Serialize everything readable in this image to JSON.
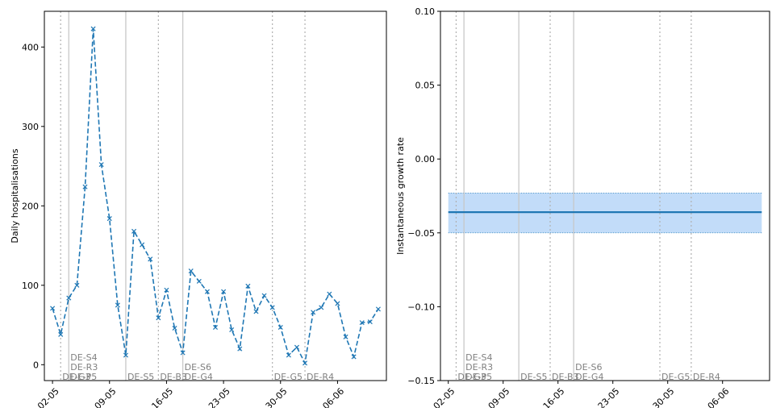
{
  "colors": {
    "series": "#1f77b4",
    "band_fill": "#c2dcf9",
    "band_edge": "#1f77b4",
    "annotation_text": "#808080",
    "line_solid": "#c8c8c8",
    "line_dotted": "#b0b0b0"
  },
  "x_axis": {
    "type": "date",
    "range": [
      "2021-05-01",
      "2021-06-12"
    ],
    "ticks": [
      {
        "date": "2021-05-02",
        "label": "02-05"
      },
      {
        "date": "2021-05-09",
        "label": "09-05"
      },
      {
        "date": "2021-05-16",
        "label": "16-05"
      },
      {
        "date": "2021-05-23",
        "label": "23-05"
      },
      {
        "date": "2021-05-30",
        "label": "30-05"
      },
      {
        "date": "2021-06-06",
        "label": "06-06"
      }
    ],
    "tick_rotation_deg": 45
  },
  "annotations": [
    {
      "date": "2021-05-03",
      "style": "dotted",
      "labels": [
        "DE-G3"
      ]
    },
    {
      "date": "2021-05-04",
      "style": "solid",
      "labels": [
        "DE-S4",
        "DE-R3",
        "DE-P5"
      ]
    },
    {
      "date": "2021-05-11",
      "style": "solid",
      "labels": [
        "DE-S5"
      ]
    },
    {
      "date": "2021-05-15",
      "style": "dotted",
      "labels": [
        "DE-B3"
      ]
    },
    {
      "date": "2021-05-18",
      "style": "solid",
      "labels": [
        "DE-S6",
        "DE-G4"
      ]
    },
    {
      "date": "2021-05-29",
      "style": "dotted",
      "labels": [
        "DE-G5"
      ]
    },
    {
      "date": "2021-06-02",
      "style": "dotted",
      "labels": [
        "DE-R4"
      ]
    }
  ],
  "chart_data": [
    {
      "type": "line",
      "marker": "x",
      "linestyle": "dashed",
      "ylabel": "Daily hospitalisations",
      "ylim": [
        -20,
        445
      ],
      "yticks": [
        0,
        100,
        200,
        300,
        400
      ],
      "grid": false,
      "x": [
        "2021-05-02",
        "2021-05-03",
        "2021-05-04",
        "2021-05-05",
        "2021-05-06",
        "2021-05-07",
        "2021-05-08",
        "2021-05-09",
        "2021-05-10",
        "2021-05-11",
        "2021-05-12",
        "2021-05-13",
        "2021-05-14",
        "2021-05-15",
        "2021-05-16",
        "2021-05-17",
        "2021-05-18",
        "2021-05-19",
        "2021-05-20",
        "2021-05-21",
        "2021-05-22",
        "2021-05-23",
        "2021-05-24",
        "2021-05-25",
        "2021-05-26",
        "2021-05-27",
        "2021-05-28",
        "2021-05-29",
        "2021-05-30",
        "2021-05-31",
        "2021-06-01",
        "2021-06-02",
        "2021-06-03",
        "2021-06-04",
        "2021-06-05",
        "2021-06-06",
        "2021-06-07",
        "2021-06-08",
        "2021-06-09",
        "2021-06-10",
        "2021-06-11"
      ],
      "values": [
        71,
        38,
        84,
        100,
        224,
        423,
        252,
        184,
        75,
        12,
        168,
        151,
        133,
        59,
        94,
        46,
        15,
        118,
        105,
        92,
        47,
        92,
        44,
        20,
        99,
        67,
        87,
        72,
        47,
        12,
        22,
        2,
        66,
        72,
        89,
        77,
        35,
        10,
        53,
        54,
        70
      ]
    },
    {
      "type": "area",
      "ylabel": "Instantaneous growth rate",
      "ylim": [
        -0.15,
        0.1
      ],
      "yticks": [
        -0.15,
        -0.1,
        -0.05,
        0.0,
        0.05,
        0.1
      ],
      "ytick_labels": [
        "−0.15",
        "−0.10",
        "−0.05",
        "0.00",
        "0.05",
        "0.10"
      ],
      "grid": false,
      "x": [
        "2021-05-02",
        "2021-06-11"
      ],
      "values": [
        -0.036,
        -0.036
      ],
      "lower": [
        -0.05,
        -0.05
      ],
      "upper": [
        -0.023,
        -0.023
      ]
    }
  ]
}
